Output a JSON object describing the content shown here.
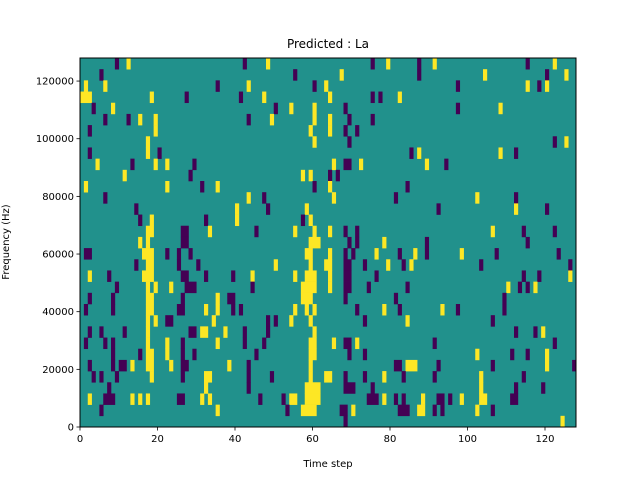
{
  "chart_data": {
    "type": "heatmap",
    "title": "Predicted : La",
    "xlabel": "Time step",
    "ylabel": "Frequency (Hz)",
    "xlim": [
      0,
      128
    ],
    "ylim": [
      0,
      128000
    ],
    "n_cols": 128,
    "n_rows": 33,
    "xticks": [
      "0",
      "20",
      "40",
      "60",
      "80",
      "100",
      "120"
    ],
    "xtick_values": [
      0,
      20,
      40,
      60,
      80,
      100,
      120
    ],
    "yticks": [
      "0",
      "20000",
      "40000",
      "60000",
      "80000",
      "100000",
      "120000"
    ],
    "ytick_values": [
      0,
      20000,
      40000,
      60000,
      80000,
      100000,
      120000
    ],
    "grid": false,
    "colormap": {
      "-1": "#440154",
      "0": "#21918c",
      "1": "#fde725"
    },
    "background_value": 0,
    "cells_format": "[time_step, freq_bin, value, run_length]",
    "cells": [
      [
        9,
        32,
        -1
      ],
      [
        12,
        32,
        1
      ],
      [
        42,
        32,
        -1
      ],
      [
        48,
        32,
        1
      ],
      [
        75,
        32,
        -1
      ],
      [
        79,
        32,
        1
      ],
      [
        87,
        32,
        -1
      ],
      [
        91,
        32,
        1
      ],
      [
        115,
        32,
        -1
      ],
      [
        122,
        32,
        1
      ],
      [
        5,
        31,
        -1
      ],
      [
        55,
        31,
        -1
      ],
      [
        67,
        31,
        1
      ],
      [
        87,
        31,
        -1
      ],
      [
        104,
        31,
        1
      ],
      [
        120,
        31,
        -1
      ],
      [
        125,
        31,
        1
      ],
      [
        1,
        30,
        1
      ],
      [
        6,
        30,
        1
      ],
      [
        35,
        30,
        -1
      ],
      [
        43,
        30,
        1
      ],
      [
        60,
        30,
        -1
      ],
      [
        63,
        30,
        1
      ],
      [
        97,
        30,
        -1
      ],
      [
        115,
        30,
        1
      ],
      [
        118,
        30,
        -1
      ],
      [
        120,
        30,
        1
      ],
      [
        0,
        29,
        1,
        3
      ],
      [
        18,
        29,
        1
      ],
      [
        27,
        29,
        -1
      ],
      [
        41,
        29,
        -1
      ],
      [
        47,
        29,
        1
      ],
      [
        64,
        29,
        1
      ],
      [
        75,
        29,
        -1
      ],
      [
        77,
        29,
        -1
      ],
      [
        82,
        29,
        1
      ],
      [
        3,
        28,
        -1
      ],
      [
        8,
        28,
        1
      ],
      [
        50,
        28,
        -1
      ],
      [
        54,
        28,
        1
      ],
      [
        60,
        28,
        1
      ],
      [
        68,
        28,
        -1
      ],
      [
        97,
        28,
        -1
      ],
      [
        108,
        28,
        1
      ],
      [
        6,
        27,
        -1
      ],
      [
        12,
        27,
        -1
      ],
      [
        15,
        27,
        1
      ],
      [
        19,
        27,
        1
      ],
      [
        43,
        27,
        -1
      ],
      [
        49,
        27,
        1
      ],
      [
        60,
        27,
        1
      ],
      [
        64,
        27,
        1
      ],
      [
        69,
        27,
        -1
      ],
      [
        75,
        27,
        -1
      ],
      [
        2,
        26,
        -1
      ],
      [
        19,
        26,
        1
      ],
      [
        59,
        26,
        1
      ],
      [
        64,
        26,
        1
      ],
      [
        68,
        26,
        -1
      ],
      [
        71,
        26,
        -1
      ],
      [
        17,
        25,
        1
      ],
      [
        60,
        25,
        1
      ],
      [
        69,
        25,
        -1
      ],
      [
        122,
        25,
        -1
      ],
      [
        125,
        25,
        1
      ],
      [
        2,
        24,
        -1
      ],
      [
        17,
        24,
        1
      ],
      [
        20,
        24,
        -1
      ],
      [
        85,
        24,
        -1
      ],
      [
        87,
        24,
        1
      ],
      [
        108,
        24,
        1
      ],
      [
        112,
        24,
        -1
      ],
      [
        4,
        23,
        1
      ],
      [
        13,
        23,
        -1
      ],
      [
        19,
        23,
        1
      ],
      [
        22,
        23,
        1
      ],
      [
        29,
        23,
        -1
      ],
      [
        65,
        23,
        1
      ],
      [
        68,
        23,
        -1,
        2
      ],
      [
        72,
        23,
        1
      ],
      [
        89,
        23,
        1
      ],
      [
        94,
        23,
        -1
      ],
      [
        11,
        22,
        1
      ],
      [
        28,
        22,
        -1
      ],
      [
        57,
        22,
        1
      ],
      [
        59,
        22,
        1
      ],
      [
        64,
        22,
        -1
      ],
      [
        66,
        22,
        -1
      ],
      [
        1,
        21,
        1
      ],
      [
        22,
        21,
        1
      ],
      [
        31,
        21,
        -1
      ],
      [
        35,
        21,
        1
      ],
      [
        60,
        21,
        -1
      ],
      [
        64,
        21,
        1
      ],
      [
        84,
        21,
        -1
      ],
      [
        6,
        20,
        -1
      ],
      [
        43,
        20,
        1
      ],
      [
        47,
        20,
        -1
      ],
      [
        65,
        20,
        1
      ],
      [
        81,
        20,
        -1
      ],
      [
        102,
        20,
        1
      ],
      [
        112,
        20,
        -1
      ],
      [
        14,
        19,
        -1
      ],
      [
        40,
        19,
        1
      ],
      [
        48,
        19,
        -1
      ],
      [
        58,
        19,
        1
      ],
      [
        92,
        19,
        -1
      ],
      [
        112,
        19,
        1
      ],
      [
        120,
        19,
        -1
      ],
      [
        15,
        18,
        -1
      ],
      [
        18,
        18,
        1
      ],
      [
        32,
        18,
        -1
      ],
      [
        40,
        18,
        1
      ],
      [
        57,
        18,
        -1
      ],
      [
        59,
        18,
        1
      ],
      [
        17,
        17,
        1,
        2
      ],
      [
        26,
        17,
        -1,
        2
      ],
      [
        33,
        17,
        1
      ],
      [
        45,
        17,
        -1
      ],
      [
        55,
        17,
        1
      ],
      [
        60,
        17,
        1
      ],
      [
        64,
        17,
        1
      ],
      [
        68,
        17,
        -1
      ],
      [
        71,
        17,
        -1
      ],
      [
        106,
        17,
        1
      ],
      [
        114,
        17,
        -1
      ],
      [
        122,
        17,
        -1
      ],
      [
        15,
        16,
        1
      ],
      [
        17,
        16,
        1
      ],
      [
        26,
        16,
        -1,
        2
      ],
      [
        59,
        16,
        1,
        3
      ],
      [
        69,
        16,
        -1
      ],
      [
        71,
        16,
        -1
      ],
      [
        78,
        16,
        1
      ],
      [
        89,
        16,
        -1
      ],
      [
        115,
        16,
        -1
      ],
      [
        1,
        15,
        -1,
        2
      ],
      [
        16,
        15,
        1,
        3
      ],
      [
        22,
        15,
        -1
      ],
      [
        25,
        15,
        -1
      ],
      [
        28,
        15,
        -1
      ],
      [
        58,
        15,
        1,
        2
      ],
      [
        64,
        15,
        1
      ],
      [
        68,
        15,
        -1
      ],
      [
        70,
        15,
        -1
      ],
      [
        76,
        15,
        1
      ],
      [
        82,
        15,
        -1
      ],
      [
        86,
        15,
        1
      ],
      [
        89,
        15,
        -1
      ],
      [
        98,
        15,
        1
      ],
      [
        107,
        15,
        -1
      ],
      [
        123,
        15,
        -1
      ],
      [
        14,
        14,
        -1
      ],
      [
        17,
        14,
        1,
        2
      ],
      [
        25,
        14,
        -1
      ],
      [
        30,
        14,
        -1
      ],
      [
        50,
        14,
        1
      ],
      [
        59,
        14,
        1
      ],
      [
        63,
        14,
        1,
        2
      ],
      [
        68,
        14,
        -1,
        2
      ],
      [
        73,
        14,
        -1
      ],
      [
        79,
        14,
        1
      ],
      [
        83,
        14,
        -1
      ],
      [
        85,
        14,
        1
      ],
      [
        103,
        14,
        -1
      ],
      [
        126,
        14,
        -1
      ],
      [
        2,
        13,
        1
      ],
      [
        7,
        13,
        -1
      ],
      [
        16,
        13,
        1,
        3
      ],
      [
        26,
        13,
        -1,
        2
      ],
      [
        32,
        13,
        -1
      ],
      [
        39,
        13,
        -1
      ],
      [
        44,
        13,
        1
      ],
      [
        55,
        13,
        1
      ],
      [
        58,
        13,
        1,
        3
      ],
      [
        64,
        13,
        1
      ],
      [
        68,
        13,
        -1,
        2
      ],
      [
        76,
        13,
        -1
      ],
      [
        114,
        13,
        -1
      ],
      [
        118,
        13,
        -1
      ],
      [
        126,
        13,
        1
      ],
      [
        9,
        12,
        -1
      ],
      [
        17,
        12,
        1
      ],
      [
        19,
        12,
        1
      ],
      [
        23,
        12,
        1
      ],
      [
        27,
        12,
        -1,
        3
      ],
      [
        44,
        12,
        -1
      ],
      [
        57,
        12,
        1,
        4
      ],
      [
        64,
        12,
        1
      ],
      [
        68,
        12,
        -1,
        2
      ],
      [
        74,
        12,
        -1
      ],
      [
        84,
        12,
        -1
      ],
      [
        110,
        12,
        1
      ],
      [
        113,
        12,
        -1
      ],
      [
        115,
        12,
        -1
      ],
      [
        117,
        12,
        1
      ],
      [
        2,
        11,
        -1
      ],
      [
        8,
        11,
        -1
      ],
      [
        17,
        11,
        1,
        2
      ],
      [
        26,
        11,
        -1
      ],
      [
        35,
        11,
        1
      ],
      [
        38,
        11,
        -1,
        2
      ],
      [
        57,
        11,
        1,
        3
      ],
      [
        68,
        11,
        -1
      ],
      [
        81,
        11,
        -1
      ],
      [
        109,
        11,
        -1
      ],
      [
        1,
        10,
        -1
      ],
      [
        8,
        10,
        -1
      ],
      [
        17,
        10,
        1,
        2
      ],
      [
        25,
        10,
        -1,
        2
      ],
      [
        32,
        10,
        1
      ],
      [
        35,
        10,
        1
      ],
      [
        39,
        10,
        -1
      ],
      [
        41,
        10,
        -1
      ],
      [
        55,
        10,
        1
      ],
      [
        58,
        10,
        1
      ],
      [
        60,
        10,
        1
      ],
      [
        71,
        10,
        -1
      ],
      [
        78,
        10,
        1
      ],
      [
        82,
        10,
        -1
      ],
      [
        93,
        10,
        1
      ],
      [
        97,
        10,
        -1
      ],
      [
        109,
        10,
        -1
      ],
      [
        17,
        9,
        1
      ],
      [
        19,
        9,
        1
      ],
      [
        22,
        9,
        -1,
        2
      ],
      [
        34,
        9,
        1
      ],
      [
        48,
        9,
        -1
      ],
      [
        50,
        9,
        -1
      ],
      [
        54,
        9,
        1
      ],
      [
        59,
        9,
        1
      ],
      [
        73,
        9,
        -1
      ],
      [
        84,
        9,
        1
      ],
      [
        106,
        9,
        -1
      ],
      [
        2,
        8,
        -1
      ],
      [
        5,
        8,
        -1
      ],
      [
        11,
        8,
        -1
      ],
      [
        17,
        8,
        1
      ],
      [
        28,
        8,
        -1,
        2
      ],
      [
        31,
        8,
        1,
        2
      ],
      [
        37,
        8,
        1
      ],
      [
        42,
        8,
        -1
      ],
      [
        48,
        8,
        -1
      ],
      [
        60,
        8,
        1
      ],
      [
        112,
        8,
        -1
      ],
      [
        117,
        8,
        -1
      ],
      [
        119,
        8,
        1
      ],
      [
        1,
        7,
        -1
      ],
      [
        6,
        7,
        -1
      ],
      [
        8,
        7,
        -1
      ],
      [
        17,
        7,
        1
      ],
      [
        22,
        7,
        1
      ],
      [
        26,
        7,
        -1
      ],
      [
        35,
        7,
        1
      ],
      [
        42,
        7,
        -1
      ],
      [
        47,
        7,
        -1
      ],
      [
        59,
        7,
        1,
        2
      ],
      [
        65,
        7,
        1
      ],
      [
        68,
        7,
        -1,
        2
      ],
      [
        71,
        7,
        1
      ],
      [
        91,
        7,
        -1
      ],
      [
        122,
        7,
        -1
      ],
      [
        8,
        6,
        -1
      ],
      [
        15,
        6,
        -1
      ],
      [
        17,
        6,
        1,
        2
      ],
      [
        22,
        6,
        1
      ],
      [
        26,
        6,
        -1
      ],
      [
        29,
        6,
        -1
      ],
      [
        45,
        6,
        -1
      ],
      [
        59,
        6,
        1,
        2
      ],
      [
        69,
        6,
        -1
      ],
      [
        73,
        6,
        -1
      ],
      [
        102,
        6,
        1
      ],
      [
        111,
        6,
        -1
      ],
      [
        115,
        6,
        -1
      ],
      [
        120,
        6,
        1
      ],
      [
        2,
        5,
        -1
      ],
      [
        8,
        5,
        -1
      ],
      [
        10,
        5,
        -1,
        2
      ],
      [
        13,
        5,
        1
      ],
      [
        17,
        5,
        1,
        2
      ],
      [
        23,
        5,
        1
      ],
      [
        26,
        5,
        -1,
        2
      ],
      [
        38,
        5,
        1
      ],
      [
        43,
        5,
        -1
      ],
      [
        59,
        5,
        1
      ],
      [
        81,
        5,
        -1,
        2
      ],
      [
        84,
        5,
        1,
        3
      ],
      [
        92,
        5,
        -1
      ],
      [
        106,
        5,
        -1
      ],
      [
        120,
        5,
        1
      ],
      [
        127,
        5,
        -1
      ],
      [
        3,
        4,
        -1
      ],
      [
        5,
        4,
        -1
      ],
      [
        9,
        4,
        -1
      ],
      [
        18,
        4,
        1
      ],
      [
        26,
        4,
        -1
      ],
      [
        32,
        4,
        1,
        2
      ],
      [
        43,
        4,
        -1
      ],
      [
        49,
        4,
        -1
      ],
      [
        59,
        4,
        1
      ],
      [
        63,
        4,
        1,
        2
      ],
      [
        68,
        4,
        -1
      ],
      [
        73,
        4,
        -1
      ],
      [
        78,
        4,
        1
      ],
      [
        83,
        4,
        -1
      ],
      [
        91,
        4,
        -1
      ],
      [
        103,
        4,
        1
      ],
      [
        114,
        4,
        -1
      ],
      [
        7,
        3,
        -1
      ],
      [
        32,
        3,
        1
      ],
      [
        43,
        3,
        -1
      ],
      [
        58,
        3,
        1,
        4
      ],
      [
        68,
        3,
        -1,
        3
      ],
      [
        75,
        3,
        -1
      ],
      [
        103,
        3,
        1
      ],
      [
        112,
        3,
        -1
      ],
      [
        119,
        3,
        -1
      ],
      [
        2,
        2,
        1
      ],
      [
        6,
        2,
        -1,
        3
      ],
      [
        13,
        2,
        1
      ],
      [
        15,
        2,
        1
      ],
      [
        17,
        2,
        1
      ],
      [
        25,
        2,
        -1,
        2
      ],
      [
        31,
        2,
        1
      ],
      [
        33,
        2,
        1
      ],
      [
        46,
        2,
        -1
      ],
      [
        52,
        2,
        -1
      ],
      [
        54,
        2,
        1,
        2
      ],
      [
        58,
        2,
        1,
        4
      ],
      [
        74,
        2,
        -1,
        3
      ],
      [
        78,
        2,
        1
      ],
      [
        81,
        2,
        -1
      ],
      [
        83,
        2,
        -1
      ],
      [
        88,
        2,
        1
      ],
      [
        92,
        2,
        -1,
        2
      ],
      [
        95,
        2,
        -1
      ],
      [
        98,
        2,
        1
      ],
      [
        103,
        2,
        1,
        2
      ],
      [
        111,
        2,
        -1,
        2
      ],
      [
        5,
        1,
        -1
      ],
      [
        35,
        1,
        1
      ],
      [
        53,
        1,
        -1
      ],
      [
        57,
        1,
        1,
        4
      ],
      [
        67,
        1,
        -1,
        2
      ],
      [
        70,
        1,
        1
      ],
      [
        82,
        1,
        -1,
        3
      ],
      [
        87,
        1,
        1,
        2
      ],
      [
        91,
        1,
        -1
      ],
      [
        93,
        1,
        -1
      ],
      [
        102,
        1,
        1
      ],
      [
        106,
        1,
        -1
      ],
      [
        68,
        0,
        -1
      ],
      [
        124,
        0,
        1
      ]
    ]
  }
}
